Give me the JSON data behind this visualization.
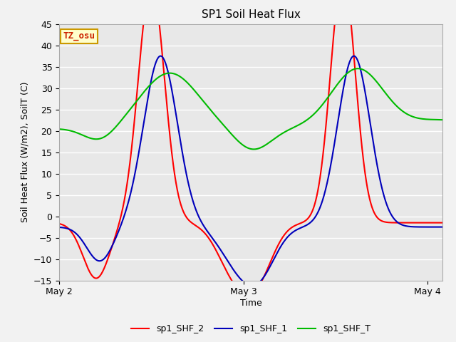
{
  "title": "SP1 Soil Heat Flux",
  "xlabel": "Time",
  "ylabel": "Soil Heat Flux (W/m2), SoilT (C)",
  "ylim": [
    -15,
    45
  ],
  "yticks": [
    -15,
    -10,
    -5,
    0,
    5,
    10,
    15,
    20,
    25,
    30,
    35,
    40,
    45
  ],
  "xtick_labels": [
    "May 2",
    "May 3",
    "May 4"
  ],
  "xtick_positions": [
    0.0,
    1.0,
    2.0
  ],
  "legend_labels": [
    "sp1_SHF_2",
    "sp1_SHF_1",
    "sp1_SHF_T"
  ],
  "legend_colors": [
    "#ff0000",
    "#0000bb",
    "#00bb00"
  ],
  "line_colors": [
    "#ff0000",
    "#0000bb",
    "#00bb00"
  ],
  "annotation_text": "TZ_osu",
  "annotation_bg": "#ffffcc",
  "annotation_border": "#cc9900",
  "bg_color": "#e8e8e8",
  "grid_color": "#ffffff",
  "title_fontsize": 11,
  "axis_label_fontsize": 9,
  "tick_fontsize": 9
}
